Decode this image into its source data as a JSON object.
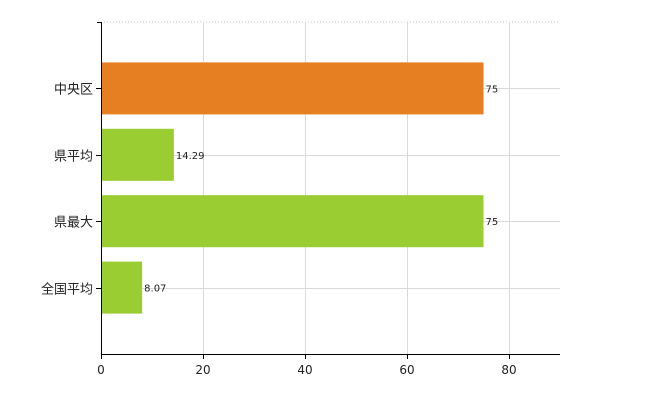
{
  "chart_data": {
    "type": "bar",
    "orientation": "horizontal",
    "categories": [
      "中央区",
      "県平均",
      "県最大",
      "全国平均"
    ],
    "values": [
      75,
      14.29,
      75,
      8.07
    ],
    "data_labels": [
      "75",
      "14.29",
      "75",
      "8.07"
    ],
    "colors": [
      "#e67e22",
      "#9acd32",
      "#9acd32",
      "#9acd32"
    ],
    "xlim": [
      0,
      90
    ],
    "xticks": [
      0,
      20,
      40,
      60,
      80
    ],
    "xtick_labels": [
      "0",
      "20",
      "40",
      "60",
      "80"
    ],
    "grid": true,
    "legend": "none"
  }
}
